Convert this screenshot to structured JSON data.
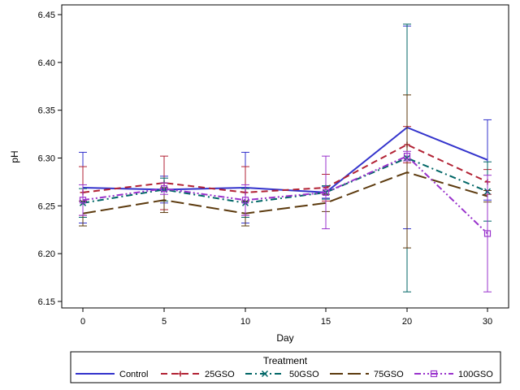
{
  "chart_data": {
    "type": "line",
    "xlabel": "Day",
    "ylabel": "pH",
    "x": [
      0,
      5,
      10,
      15,
      20,
      30
    ],
    "x_ticks": [
      "0",
      "5",
      "10",
      "15",
      "20",
      "30"
    ],
    "y_ticks": [
      "6.15",
      "6.20",
      "6.25",
      "6.30",
      "6.35",
      "6.40",
      "6.45"
    ],
    "ylim": [
      6.15,
      6.45
    ],
    "grid": false,
    "legend": {
      "title": "Treatment",
      "placement": "bottom"
    },
    "series": [
      {
        "name": "Control",
        "color": "#3333cc",
        "dash": "solid",
        "marker": "none",
        "values": [
          6.269,
          6.267,
          6.269,
          6.264,
          6.332,
          6.298
        ],
        "error_low": [
          6.232,
          6.253,
          6.232,
          6.258,
          6.226,
          6.256
        ],
        "error_high": [
          6.306,
          6.281,
          6.306,
          6.27,
          6.438,
          6.34
        ]
      },
      {
        "name": "25GSO",
        "color": "#b22234",
        "dash": "dashed",
        "marker": "plus",
        "values": [
          6.264,
          6.274,
          6.264,
          6.269,
          6.314,
          6.275
        ],
        "error_low": [
          6.24,
          6.246,
          6.24,
          6.255,
          6.295,
          6.262
        ],
        "error_high": [
          6.291,
          6.302,
          6.291,
          6.283,
          6.333,
          6.288
        ]
      },
      {
        "name": "50GSO",
        "color": "#006666",
        "dash": "dashdot",
        "marker": "x",
        "values": [
          6.253,
          6.267,
          6.253,
          6.264,
          6.3,
          6.265
        ],
        "error_low": [
          6.238,
          6.255,
          6.238,
          6.257,
          6.16,
          6.234
        ],
        "error_high": [
          6.268,
          6.279,
          6.268,
          6.271,
          6.44,
          6.296
        ]
      },
      {
        "name": "75GSO",
        "color": "#5c3a0e",
        "dash": "longdash",
        "marker": "none",
        "values": [
          6.242,
          6.256,
          6.242,
          6.253,
          6.285,
          6.26
        ],
        "error_low": [
          6.229,
          6.243,
          6.229,
          6.244,
          6.206,
          6.254
        ],
        "error_high": [
          6.255,
          6.269,
          6.255,
          6.262,
          6.366,
          6.266
        ]
      },
      {
        "name": "100GSO",
        "color": "#9933cc",
        "dash": "dashdotdot",
        "marker": "square",
        "values": [
          6.256,
          6.268,
          6.256,
          6.264,
          6.302,
          6.221
        ],
        "error_low": [
          6.24,
          6.262,
          6.24,
          6.226,
          6.297,
          6.16
        ],
        "error_high": [
          6.272,
          6.274,
          6.272,
          6.302,
          6.307,
          6.282
        ]
      }
    ]
  }
}
